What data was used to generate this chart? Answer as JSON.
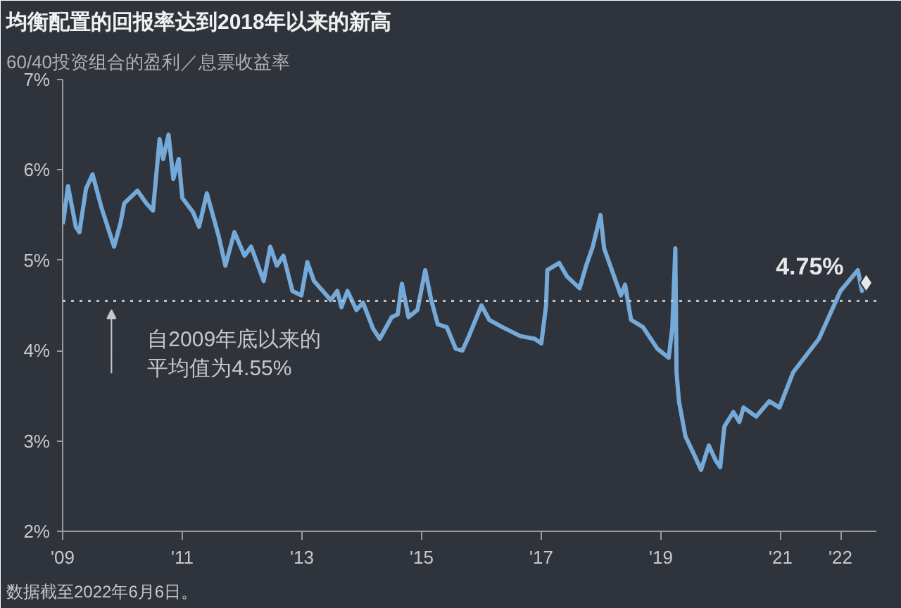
{
  "chart_data": {
    "type": "line",
    "title": "均衡配置的回报率达到2018年以来的新高",
    "subtitle": "60/40投资组合的盈利／息票收益率",
    "x": [
      2009.0,
      2009.02,
      2009.09,
      2009.22,
      2009.28,
      2009.39,
      2009.5,
      2009.65,
      2009.86,
      2009.97,
      2010.03,
      2010.25,
      2010.4,
      2010.51,
      2010.62,
      2010.68,
      2010.77,
      2010.85,
      2010.94,
      2011.0,
      2011.18,
      2011.28,
      2011.41,
      2011.61,
      2011.72,
      2011.87,
      2012.04,
      2012.15,
      2012.36,
      2012.47,
      2012.58,
      2012.69,
      2012.84,
      2012.99,
      2013.09,
      2013.2,
      2013.48,
      2013.59,
      2013.66,
      2013.76,
      2013.91,
      2014.02,
      2014.19,
      2014.3,
      2014.5,
      2014.6,
      2014.67,
      2014.78,
      2014.93,
      2015.06,
      2015.16,
      2015.27,
      2015.42,
      2015.57,
      2015.68,
      2015.79,
      2016.0,
      2016.13,
      2016.35,
      2016.65,
      2016.89,
      2017.0,
      2017.08,
      2017.1,
      2017.3,
      2017.43,
      2017.64,
      2017.75,
      2017.86,
      2017.99,
      2018.05,
      2018.18,
      2018.33,
      2018.4,
      2018.5,
      2018.7,
      2018.94,
      2019.13,
      2019.19,
      2019.24,
      2019.26,
      2019.3,
      2019.41,
      2019.56,
      2019.67,
      2019.8,
      2019.91,
      2019.99,
      2020.06,
      2020.21,
      2020.31,
      2020.38,
      2020.59,
      2020.81,
      2020.98,
      2021.21,
      2021.64,
      2022.0,
      2022.29,
      2022.36,
      2022.43
    ],
    "series": [
      {
        "color": "#74a9d8",
        "values": [
          5.4,
          5.47,
          5.82,
          5.37,
          5.31,
          5.79,
          5.95,
          5.58,
          5.15,
          5.42,
          5.63,
          5.77,
          5.63,
          5.55,
          6.34,
          6.12,
          6.39,
          5.9,
          6.12,
          5.69,
          5.53,
          5.37,
          5.74,
          5.26,
          4.94,
          5.31,
          5.05,
          5.15,
          4.77,
          5.15,
          4.94,
          5.05,
          4.66,
          4.61,
          4.98,
          4.77,
          4.56,
          4.66,
          4.48,
          4.66,
          4.45,
          4.53,
          4.24,
          4.13,
          4.37,
          4.4,
          4.74,
          4.37,
          4.45,
          4.89,
          4.56,
          4.29,
          4.26,
          4.02,
          4.0,
          4.16,
          4.5,
          4.34,
          4.26,
          4.16,
          4.13,
          4.08,
          4.5,
          4.89,
          4.97,
          4.82,
          4.69,
          4.94,
          5.15,
          5.5,
          5.13,
          4.89,
          4.61,
          4.73,
          4.34,
          4.26,
          4.02,
          3.92,
          4.26,
          5.13,
          3.76,
          3.44,
          3.05,
          2.84,
          2.68,
          2.95,
          2.79,
          2.71,
          3.16,
          3.32,
          3.21,
          3.37,
          3.27,
          3.44,
          3.37,
          3.76,
          4.13,
          4.66,
          4.89,
          4.66,
          4.75
        ]
      }
    ],
    "xlim": [
      2009,
      2022.6
    ],
    "ylim": [
      2,
      7
    ],
    "xticks": [
      {
        "value": 2009,
        "label": "'09"
      },
      {
        "value": 2011,
        "label": "'11"
      },
      {
        "value": 2013,
        "label": "'13"
      },
      {
        "value": 2015,
        "label": "'15"
      },
      {
        "value": 2017,
        "label": "'17"
      },
      {
        "value": 2019,
        "label": "'19"
      },
      {
        "value": 2021,
        "label": "'21"
      },
      {
        "value": 2022,
        "label": "'22"
      }
    ],
    "yticks": [
      {
        "value": 2,
        "label": "2%"
      },
      {
        "value": 3,
        "label": "3%"
      },
      {
        "value": 4,
        "label": "4%"
      },
      {
        "value": 5,
        "label": "5%"
      },
      {
        "value": 6,
        "label": "6%"
      },
      {
        "value": 7,
        "label": "7%"
      }
    ],
    "ref_lines": [
      {
        "axis": "y",
        "value": 4.55,
        "label": "自2009年底以来的平均值为4.55%",
        "line_style": "dotted",
        "color": "#bfbfbf"
      }
    ],
    "annotations": [
      {
        "text": "4.75%",
        "x": 2022.43,
        "y": 4.75
      },
      "数据截至2022年6月6日。"
    ],
    "grid": false,
    "line_style": "solid"
  }
}
